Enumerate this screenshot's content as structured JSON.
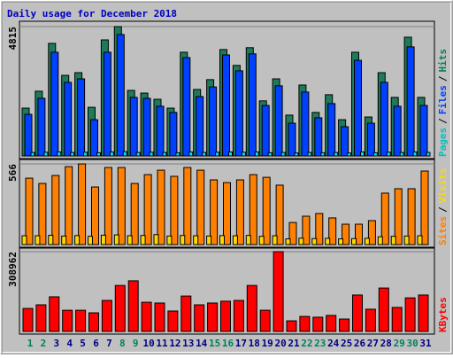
{
  "chart_data": [
    {
      "type": "bar",
      "title": "Daily usage for December 2018",
      "categories": [
        "1",
        "2",
        "3",
        "4",
        "5",
        "6",
        "7",
        "8",
        "9",
        "10",
        "11",
        "12",
        "13",
        "14",
        "15",
        "16",
        "17",
        "18",
        "19",
        "20",
        "21",
        "22",
        "23",
        "24",
        "25",
        "26",
        "27",
        "28",
        "29",
        "30",
        "31"
      ],
      "category_colors": [
        "#00805c",
        "#00805c",
        "#000080",
        "#000080",
        "#000080",
        "#000080",
        "#000080",
        "#00805c",
        "#00805c",
        "#000080",
        "#000080",
        "#000080",
        "#000080",
        "#000080",
        "#00805c",
        "#00805c",
        "#000080",
        "#000080",
        "#000080",
        "#000080",
        "#000080",
        "#00805c",
        "#00805c",
        "#000080",
        "#000080",
        "#000080",
        "#000080",
        "#000080",
        "#00805c",
        "#00805c",
        "#000080"
      ],
      "legend_separator": "/",
      "series": [
        {
          "name": "Pages",
          "color": "#00e0ff",
          "label_color": "#00c0c0",
          "values": [
            130,
            140,
            150,
            130,
            140,
            120,
            150,
            160,
            130,
            140,
            130,
            120,
            150,
            130,
            140,
            150,
            140,
            150,
            120,
            130,
            110,
            130,
            120,
            130,
            110,
            150,
            120,
            140,
            130,
            150,
            130
          ]
        },
        {
          "name": "Files",
          "color": "#0040ff",
          "label_color": "#0040ff",
          "values": [
            1550,
            2145,
            3860,
            2740,
            2870,
            1350,
            3860,
            4520,
            2180,
            2145,
            1850,
            1620,
            3660,
            2210,
            2570,
            3760,
            3170,
            3800,
            1880,
            2610,
            1220,
            2380,
            1420,
            1950,
            1090,
            3560,
            1220,
            2740,
            1850,
            4060,
            1880
          ]
        },
        {
          "name": "Hits",
          "color": "#1e7b5a",
          "label_color": "#00805c",
          "values": [
            1780,
            2410,
            4190,
            3000,
            3100,
            1810,
            4320,
            4815,
            2440,
            2340,
            2110,
            1780,
            3860,
            2475,
            2840,
            3960,
            3370,
            4030,
            2050,
            2870,
            1520,
            2640,
            1620,
            2280,
            1350,
            3860,
            1450,
            3100,
            2180,
            4420,
            2180
          ]
        }
      ],
      "ylim": [
        0,
        4815
      ],
      "yticks": [
        4815
      ]
    },
    {
      "type": "bar",
      "legend_separator": "/",
      "series": [
        {
          "name": "Sites",
          "color": "#ffd800",
          "label_color": "#ff8000",
          "values": [
            62,
            62,
            65,
            60,
            63,
            58,
            66,
            68,
            62,
            64,
            70,
            60,
            64,
            62,
            60,
            63,
            62,
            64,
            58,
            62,
            40,
            45,
            42,
            44,
            40,
            42,
            44,
            55,
            58,
            60,
            62
          ]
        },
        {
          "name": "Visits",
          "color": "#ff8000",
          "label_color": "#ffd800",
          "values": [
            466,
            429,
            485,
            547,
            566,
            404,
            541,
            541,
            429,
            491,
            522,
            479,
            541,
            522,
            454,
            435,
            454,
            491,
            472,
            417,
            155,
            199,
            218,
            187,
            143,
            143,
            168,
            361,
            392,
            392,
            516
          ]
        }
      ],
      "ylim": [
        0,
        566
      ],
      "yticks": [
        566
      ]
    },
    {
      "type": "bar",
      "series": [
        {
          "name": "KBytes",
          "color": "#ff0000",
          "label_color": "#ff0000",
          "values": [
            89000,
            103000,
            134000,
            82000,
            82000,
            72000,
            120000,
            178000,
            196000,
            113000,
            110000,
            79000,
            137000,
            103000,
            110000,
            117000,
            120000,
            178000,
            82000,
            308962,
            41000,
            58000,
            55000,
            62000,
            48000,
            141000,
            86000,
            168000,
            93000,
            130000,
            141000
          ]
        }
      ],
      "ylim": [
        0,
        308962
      ],
      "yticks": [
        308962
      ]
    }
  ]
}
